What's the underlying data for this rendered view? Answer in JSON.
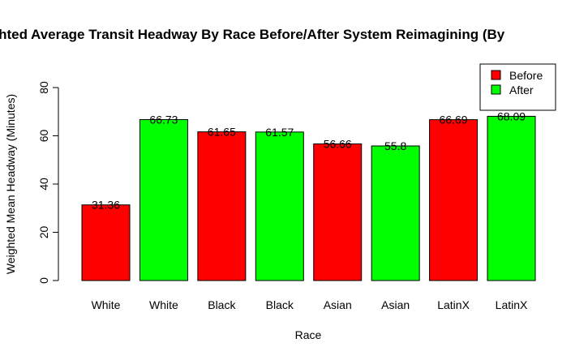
{
  "chart_data": {
    "type": "bar",
    "title": "Weighted Average Transit Headway By Race Before/After System Reimagining (By",
    "xlabel": "Race",
    "ylabel": "Weighted Mean Headway (Minutes)",
    "ylim": [
      0,
      80
    ],
    "yticks": [
      0,
      20,
      40,
      60,
      80
    ],
    "categories": [
      "White",
      "White",
      "Black",
      "Black",
      "Asian",
      "Asian",
      "LatinX",
      "LatinX"
    ],
    "values": [
      31.36,
      66.73,
      61.65,
      61.57,
      56.66,
      55.8,
      66.69,
      68.09
    ],
    "value_labels": [
      "31.36",
      "66.73",
      "61.65",
      "61.57",
      "56.66",
      "55.8",
      "66.69",
      "68.09"
    ],
    "bar_groups": [
      "Before",
      "After",
      "Before",
      "After",
      "Before",
      "After",
      "Before",
      "After"
    ],
    "legend": {
      "position": "top-right",
      "entries": [
        {
          "label": "Before",
          "color": "#ff0000"
        },
        {
          "label": "After",
          "color": "#00ff00"
        }
      ]
    },
    "colors": {
      "Before": "#ff0000",
      "After": "#00ff00"
    },
    "grid": false
  }
}
